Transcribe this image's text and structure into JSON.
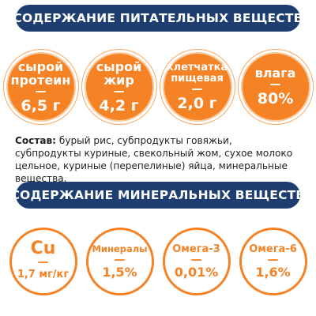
{
  "nutrients_header": "СОДЕРЖАНИЕ ПИТАТЕЛЬНЫХ ВЕЩЕСТВ",
  "nutrients": [
    {
      "label_line1": "сырой",
      "label_line2": "протеин",
      "value": "6,5 г"
    },
    {
      "label_line1": "сырой",
      "label_line2": "жир",
      "value": "4,2 г"
    },
    {
      "label_line1": "клетчатка",
      "label_line2": "пищевая",
      "value": "2,0 г"
    },
    {
      "label_line1": "влага",
      "label_line2": "",
      "value": "80%"
    }
  ],
  "dash": "—",
  "composition": {
    "label": "Состав:",
    "text": " бурый рис, субпродукты говяжьи, субпродукты куриные, свекольный жом, сухое молоко цельное, куриные (перепелиные) яйца, минеральные вещества."
  },
  "minerals_header": "СОДЕРЖАНИЕ МИНЕРАЛЬНЫХ ВЕЩЕСТВ",
  "minerals": [
    {
      "label": "Cu",
      "value": "1,7 мг/кг"
    },
    {
      "label": "Минералы",
      "value": "1,5%"
    },
    {
      "label": "Омега-3",
      "value": "0,01%"
    },
    {
      "label": "Омега-6",
      "value": "1,6%"
    }
  ],
  "colors": {
    "navy": "#1e3e72",
    "orange": "#f58224"
  }
}
